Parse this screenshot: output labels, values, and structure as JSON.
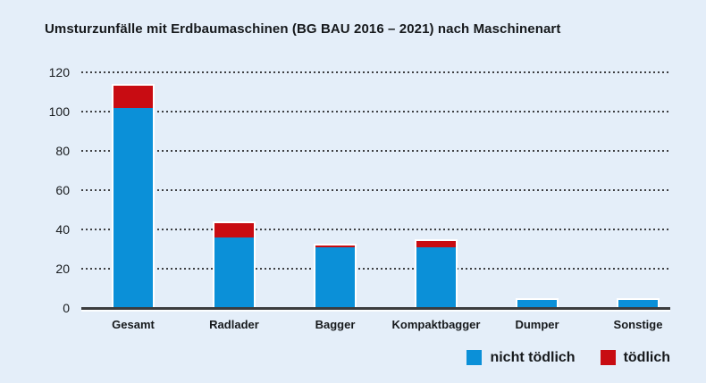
{
  "title": "Umsturzunfälle mit Erdbaumaschinen (BG BAU 2016 – 2021) nach Maschinenart",
  "colors": {
    "background": "#e4eef9",
    "bar_blue": "#0b90d8",
    "bar_red": "#c80c12",
    "text": "#16191c",
    "grid": "#3f4043",
    "axis": "#3b3c3e"
  },
  "legend": {
    "items": [
      {
        "label": "nicht tödlich",
        "color": "#0b90d8"
      },
      {
        "label": "tödlich",
        "color": "#c80c12"
      }
    ]
  },
  "chart_data": {
    "type": "bar",
    "stacked": true,
    "title": "Umsturzunfälle mit Erdbaumaschinen (BG BAU 2016 – 2021) nach Maschinenart",
    "categories": [
      "Gesamt",
      "Radlader",
      "Bagger",
      "Kompaktbagger",
      "Dumper",
      "Sonstige"
    ],
    "series": [
      {
        "name": "nicht tödlich",
        "color": "#0b90d8",
        "values": [
          102,
          36,
          31,
          31,
          4,
          4
        ]
      },
      {
        "name": "tödlich",
        "color": "#c80c12",
        "values": [
          11,
          7,
          1,
          3,
          0,
          0
        ]
      }
    ],
    "totals": [
      113,
      43,
      32,
      34,
      4,
      4
    ],
    "xlabel": "",
    "ylabel": "",
    "ylim": [
      0,
      120
    ],
    "yticks": [
      0,
      20,
      40,
      60,
      80,
      100,
      120
    ],
    "grid": "dotted-horizontal",
    "legend_position": "bottom-right"
  }
}
